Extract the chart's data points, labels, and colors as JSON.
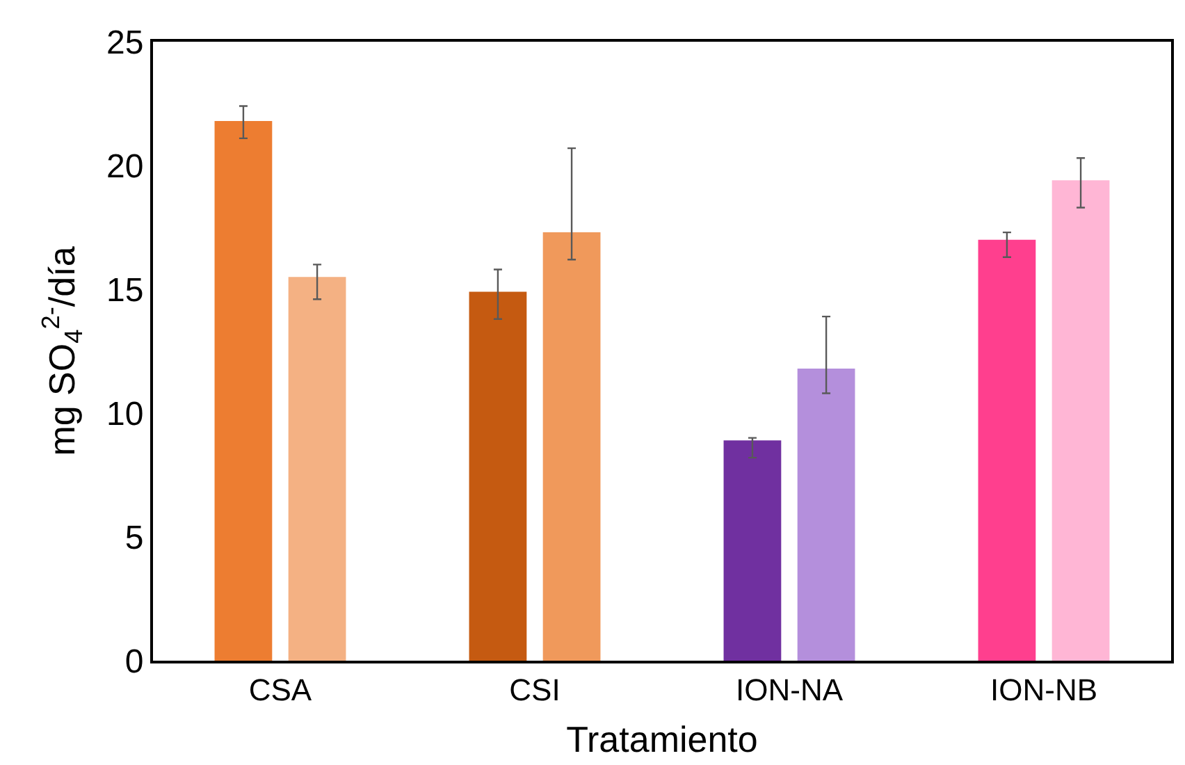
{
  "chart_data": {
    "type": "bar",
    "xlabel": "Tratamiento",
    "ylabel": "mg SO$_{4}$$^{2-}$/día",
    "categories": [
      "CSA",
      "CSI",
      "ION-NA",
      "ION-NB"
    ],
    "series": [
      {
        "colors": [
          "#ed7d31",
          "#c55a11",
          "#7030a0",
          "#ff3f8e"
        ],
        "values": [
          21.8,
          14.9,
          8.9,
          17.0
        ],
        "errors": [
          [
            21.1,
            22.4
          ],
          [
            13.8,
            15.8
          ],
          [
            8.2,
            9.0
          ],
          [
            16.3,
            17.3
          ]
        ]
      },
      {
        "colors": [
          "#f4b183",
          "#f0995b",
          "#b48fdc",
          "#ffb6d5"
        ],
        "values": [
          15.5,
          17.3,
          11.8,
          19.4
        ],
        "errors": [
          [
            14.6,
            16.0
          ],
          [
            16.2,
            20.7
          ],
          [
            10.8,
            13.9
          ],
          [
            18.3,
            20.3
          ]
        ]
      }
    ],
    "ylim": [
      0,
      25
    ],
    "yticks": [
      0,
      5,
      10,
      15,
      20,
      25
    ]
  }
}
